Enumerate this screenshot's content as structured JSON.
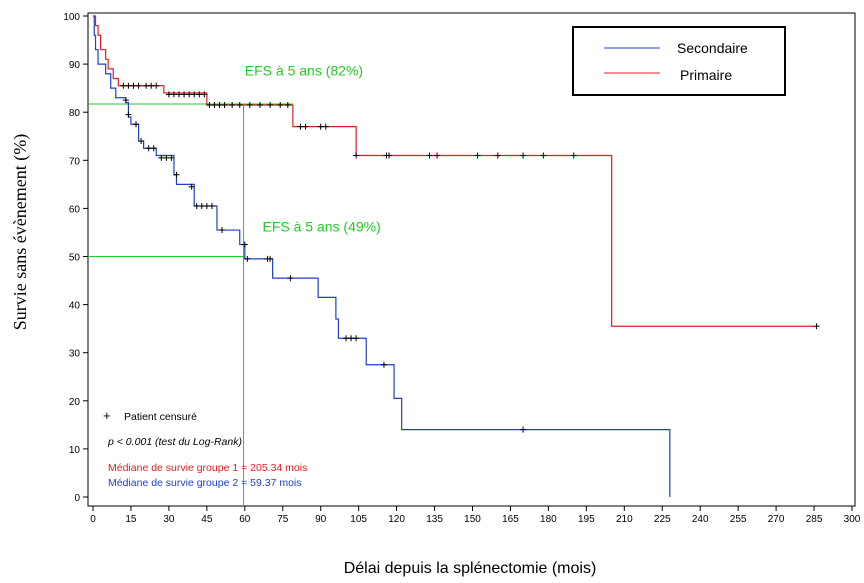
{
  "chart_data": {
    "type": "line",
    "title": "",
    "xlabel": "Délai depuis la splénectomie (mois)",
    "ylabel": "Survie sans évènement (%)",
    "xlim": [
      0,
      300
    ],
    "ylim": [
      0,
      100
    ],
    "x_ticks": [
      0,
      15,
      30,
      45,
      60,
      75,
      90,
      105,
      120,
      135,
      150,
      165,
      180,
      195,
      210,
      225,
      240,
      255,
      270,
      285,
      300
    ],
    "y_ticks": [
      0,
      10,
      20,
      30,
      40,
      50,
      60,
      70,
      80,
      90,
      100
    ],
    "grid": false,
    "legend_position": "top-right",
    "series": [
      {
        "name": "Primaire",
        "color": "#e02020",
        "steps": [
          [
            0,
            100
          ],
          [
            1,
            98
          ],
          [
            2,
            96
          ],
          [
            3,
            93
          ],
          [
            5,
            91
          ],
          [
            6,
            89
          ],
          [
            8,
            87
          ],
          [
            10,
            85.5
          ],
          [
            28,
            84
          ],
          [
            45,
            81.5
          ],
          [
            79,
            77
          ],
          [
            104,
            71
          ],
          [
            205,
            35.5
          ],
          [
            285,
            35.5
          ]
        ],
        "censored": [
          [
            12,
            85.5
          ],
          [
            14,
            85.5
          ],
          [
            16,
            85.5
          ],
          [
            18,
            85.5
          ],
          [
            21,
            85.5
          ],
          [
            23,
            85.5
          ],
          [
            25,
            85.5
          ],
          [
            30,
            83.7
          ],
          [
            32,
            83.7
          ],
          [
            34,
            83.7
          ],
          [
            36,
            83.7
          ],
          [
            38,
            83.7
          ],
          [
            40,
            83.7
          ],
          [
            42,
            83.7
          ],
          [
            44,
            83.7
          ],
          [
            46,
            81.5
          ],
          [
            48,
            81.5
          ],
          [
            50,
            81.5
          ],
          [
            52,
            81.5
          ],
          [
            55,
            81.5
          ],
          [
            58,
            81.5
          ],
          [
            62,
            81.5
          ],
          [
            66,
            81.5
          ],
          [
            70,
            81.5
          ],
          [
            74,
            81.5
          ],
          [
            77,
            81.5
          ],
          [
            82,
            77
          ],
          [
            84,
            77
          ],
          [
            90,
            77
          ],
          [
            92,
            77
          ],
          [
            104,
            71
          ],
          [
            116,
            71
          ],
          [
            117,
            71
          ],
          [
            133,
            71
          ],
          [
            136,
            71
          ],
          [
            152,
            71
          ],
          [
            160,
            71
          ],
          [
            170,
            71
          ],
          [
            178,
            71
          ],
          [
            190,
            71
          ],
          [
            286,
            35.5
          ]
        ]
      },
      {
        "name": "Secondaire",
        "color": "#2040c8",
        "steps": [
          [
            0,
            100
          ],
          [
            0.5,
            96
          ],
          [
            1,
            93
          ],
          [
            2,
            90
          ],
          [
            5,
            88
          ],
          [
            7,
            85
          ],
          [
            9,
            83
          ],
          [
            13,
            82
          ],
          [
            14,
            79
          ],
          [
            15,
            77.5
          ],
          [
            18,
            74
          ],
          [
            20,
            72.5
          ],
          [
            25,
            71
          ],
          [
            32,
            67
          ],
          [
            33,
            65
          ],
          [
            40,
            60.5
          ],
          [
            49,
            55.5
          ],
          [
            58,
            52.5
          ],
          [
            60,
            49.5
          ],
          [
            71,
            45.5
          ],
          [
            89,
            41.5
          ],
          [
            96,
            37
          ],
          [
            97,
            33
          ],
          [
            108,
            27.5
          ],
          [
            119,
            20.5
          ],
          [
            122,
            14
          ],
          [
            170,
            14
          ],
          [
            228,
            14
          ],
          [
            228,
            0
          ]
        ],
        "censored": [
          [
            13,
            82.5
          ],
          [
            14,
            79.5
          ],
          [
            17,
            77.5
          ],
          [
            19,
            74
          ],
          [
            22,
            72.5
          ],
          [
            24,
            72.5
          ],
          [
            27,
            70.5
          ],
          [
            29,
            70.5
          ],
          [
            31,
            70.5
          ],
          [
            33,
            67
          ],
          [
            39,
            64.5
          ],
          [
            41,
            60.5
          ],
          [
            43,
            60.5
          ],
          [
            45,
            60.5
          ],
          [
            47,
            60.5
          ],
          [
            51,
            55.5
          ],
          [
            60,
            52.5
          ],
          [
            61,
            49.5
          ],
          [
            69,
            49.5
          ],
          [
            70,
            49.5
          ],
          [
            78,
            45.5
          ],
          [
            100,
            33
          ],
          [
            102,
            33
          ],
          [
            104,
            33
          ],
          [
            115,
            27.5
          ],
          [
            170,
            14
          ]
        ]
      }
    ],
    "reference_lines": [
      {
        "color": "#22cc22",
        "orientation": "horizontal",
        "y": 81.7,
        "x_from": 0,
        "x_to": 79
      },
      {
        "color": "#22cc22",
        "orientation": "horizontal",
        "y": 50,
        "x_from": 0,
        "x_to": 60
      },
      {
        "color": "#22cc22",
        "orientation": "vertical",
        "x": 59.5,
        "y_from": 0,
        "y_to": 81.7
      }
    ],
    "annotations": [
      {
        "text": "EFS à 5 ans (82%)",
        "x": 60,
        "y": 87.6,
        "color": "#22cc22"
      },
      {
        "text": "EFS à 5 ans (49%)",
        "x": 67,
        "y": 55.2,
        "color": "#22cc22"
      }
    ],
    "notes": {
      "censored_label": "Patient censuré",
      "pvalue": "p < 0.001 (test du Log-Rank)",
      "median1": "Médiane de survie groupe 1 = 205.34 mois",
      "median1_color": "#e02020",
      "median2": "Médiane de survie groupe 2 = 59.37 mois",
      "median2_color": "#2040c8"
    }
  }
}
